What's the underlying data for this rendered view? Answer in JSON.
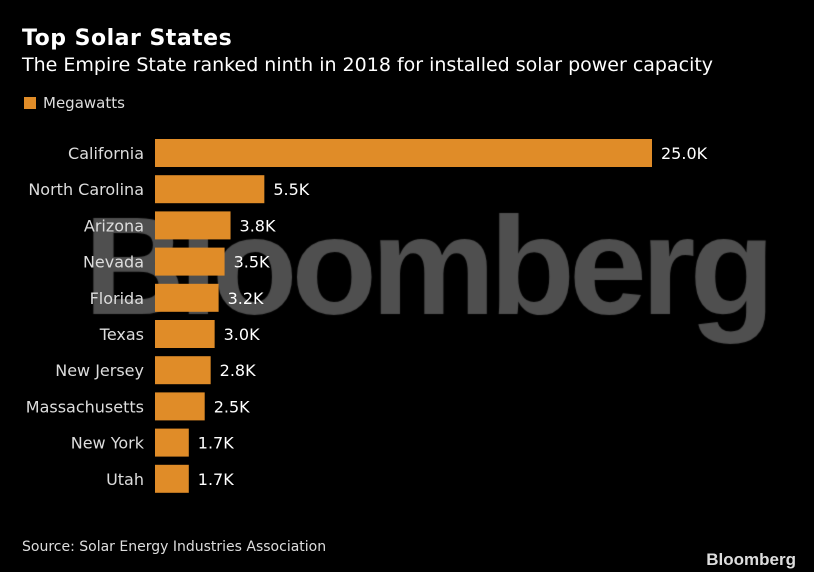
{
  "chart_data": {
    "type": "bar",
    "orientation": "horizontal",
    "title": "Top Solar States",
    "subtitle": "The Empire State ranked ninth in 2018 for installed solar power capacity",
    "categories": [
      "California",
      "North Carolina",
      "Arizona",
      "Nevada",
      "Florida",
      "Texas",
      "New Jersey",
      "Massachusetts",
      "New York",
      "Utah"
    ],
    "series": [
      {
        "name": "Megawatts",
        "values": [
          25000,
          5500,
          3800,
          3500,
          3200,
          3000,
          2800,
          2500,
          1700,
          1700
        ],
        "color": "#e08c28"
      }
    ],
    "data_labels": [
      "25.0K",
      "5.5K",
      "3.8K",
      "3.5K",
      "3.2K",
      "3.0K",
      "2.8K",
      "2.5K",
      "1.7K",
      "1.7K"
    ],
    "legend": "top-left",
    "grid": false,
    "xlim": [
      0,
      25000
    ]
  },
  "source": "Source: Solar Energy Industries Association",
  "watermark": "Bloomberg",
  "logo": "Bloomberg"
}
